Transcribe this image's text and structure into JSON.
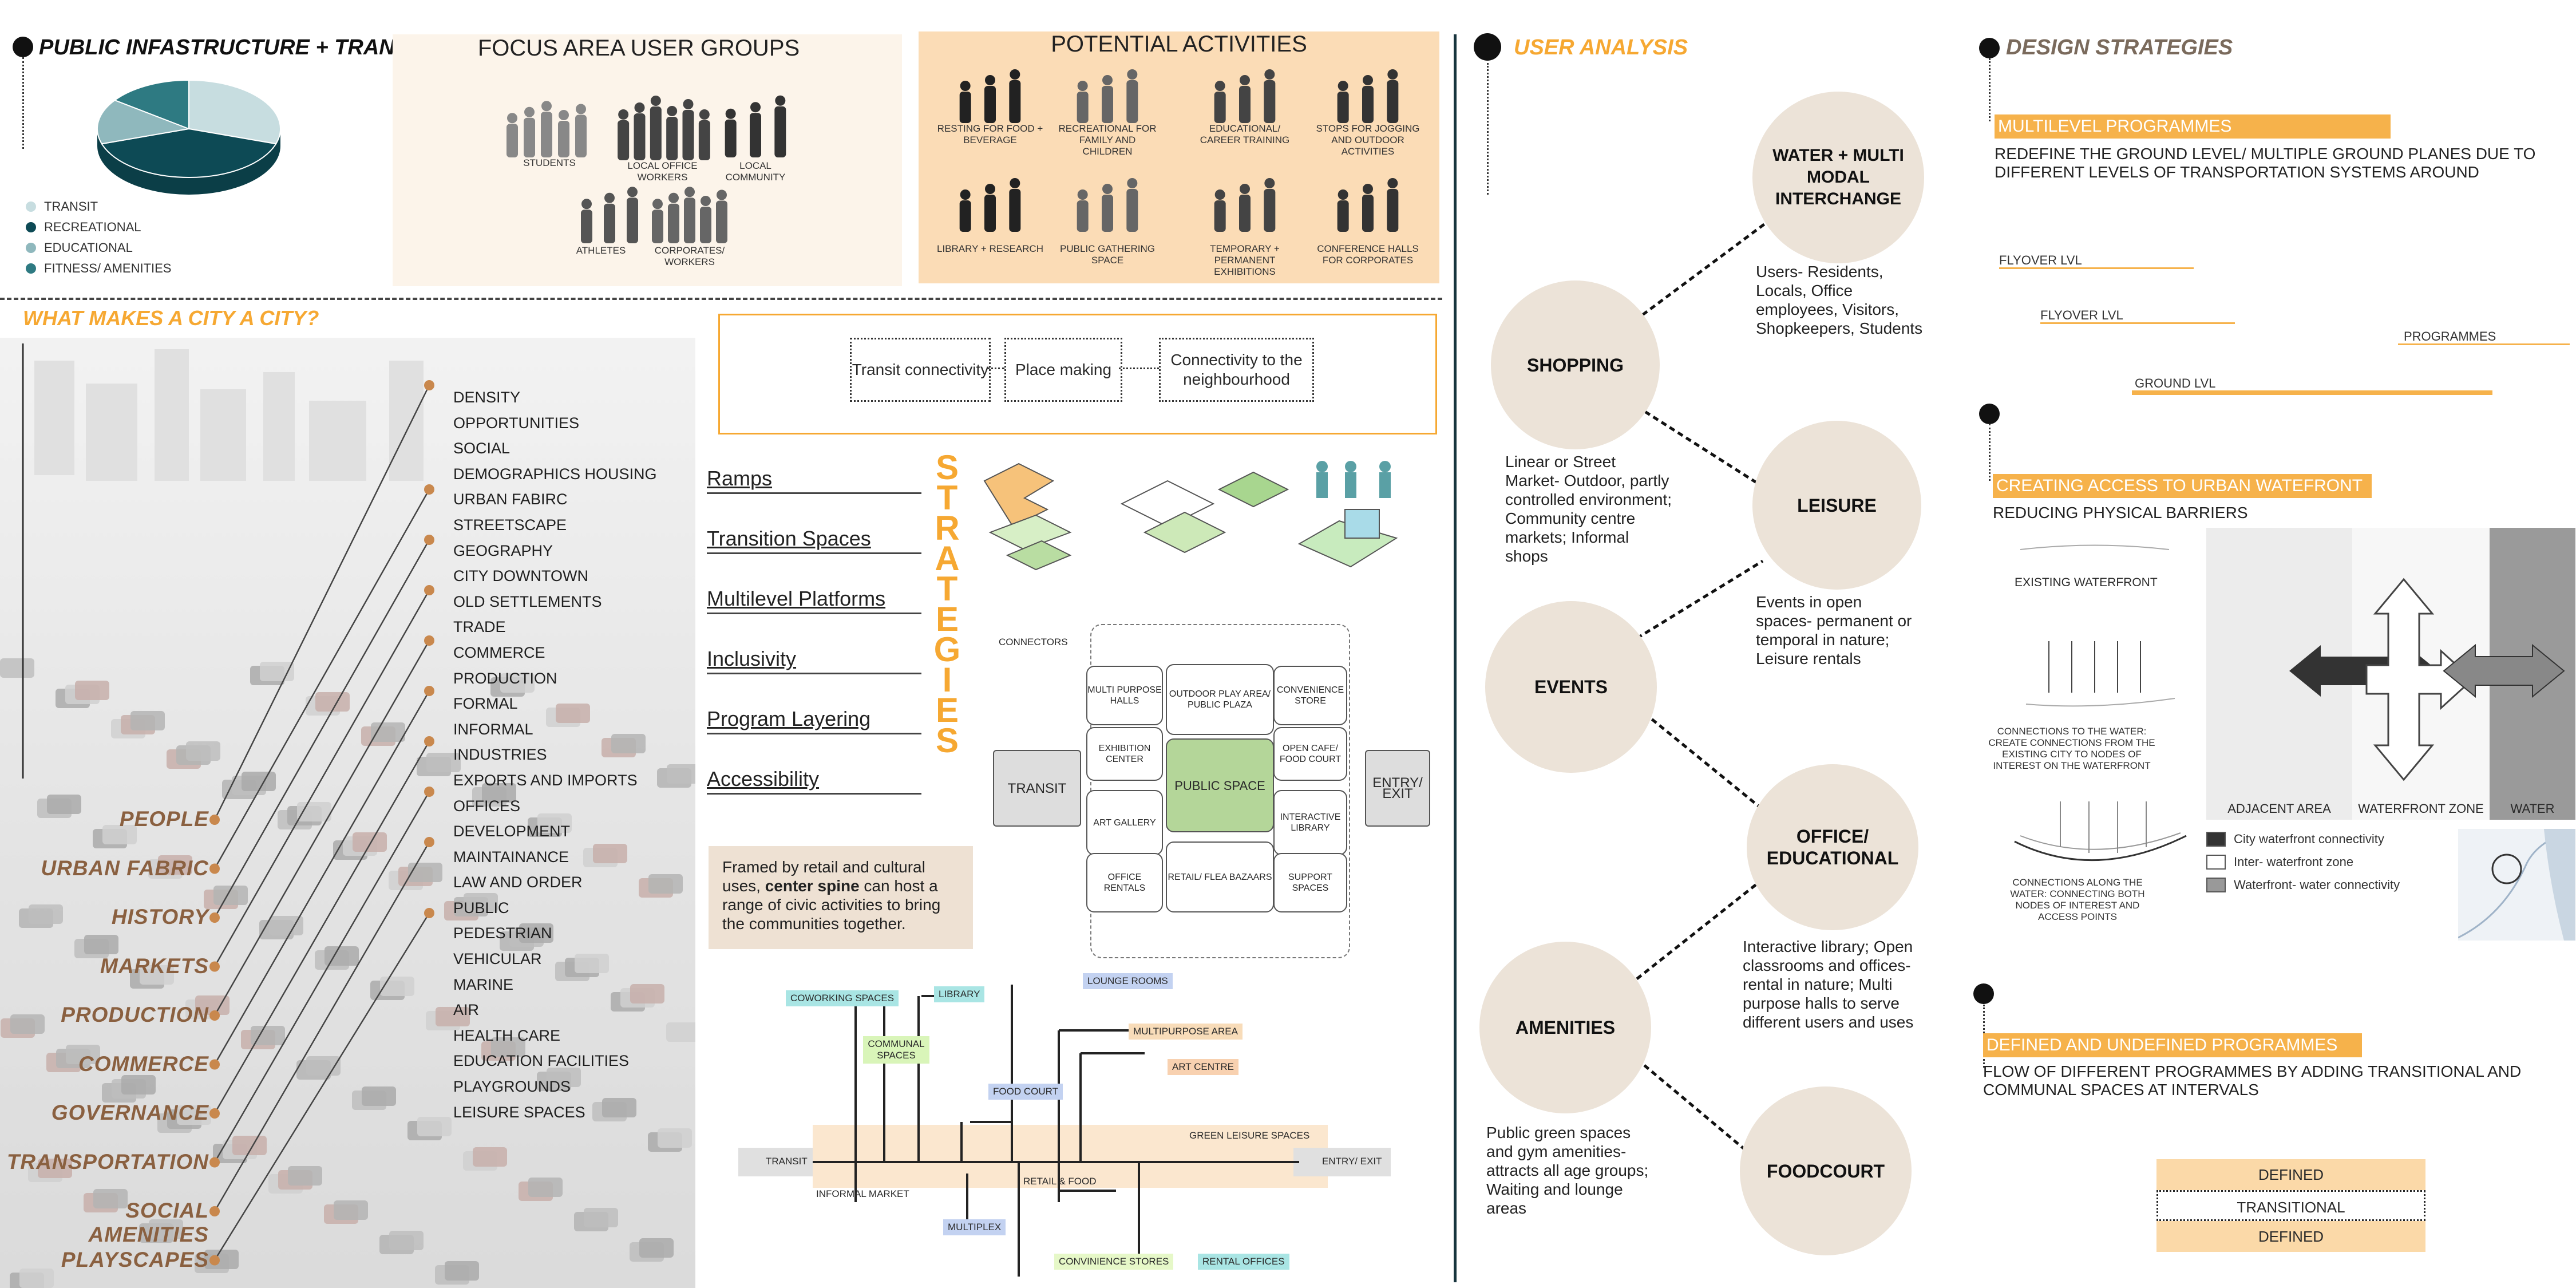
{
  "left_header": {
    "title": "PUBLIC INFASTRUCTURE + TRANSIT",
    "legend": [
      {
        "label": "TRANSIT",
        "color": "#c7dde0"
      },
      {
        "label": "RECREATIONAL",
        "color": "#0d4a55"
      },
      {
        "label": "EDUCATIONAL",
        "color": "#8fb8bd"
      },
      {
        "label": "FITNESS/ AMENITIES",
        "color": "#2e7a82"
      }
    ]
  },
  "chart_data": {
    "type": "pie",
    "title": "",
    "slices": [
      {
        "name": "TRANSIT",
        "value": 30,
        "color": "#c7dde0"
      },
      {
        "name": "RECREATIONAL",
        "value": 40,
        "color": "#0d4a55"
      },
      {
        "name": "EDUCATIONAL",
        "value": 15,
        "color": "#8fb8bd"
      },
      {
        "name": "FITNESS/ AMENITIES",
        "value": 15,
        "color": "#2e7a82"
      }
    ]
  },
  "focus": {
    "title": "FOCUS AREA USER GROUPS",
    "groups": [
      "STUDENTS",
      "LOCAL OFFICE WORKERS",
      "LOCAL COMMUNITY",
      "ATHLETES",
      "CORPORATES/ WORKERS"
    ]
  },
  "activities": {
    "title": "POTENTIAL ACTIVITIES",
    "items": [
      "RESTING FOR FOOD + BEVERAGE",
      "RECREATIONAL FOR FAMILY AND CHILDREN",
      "EDUCATIONAL/ CAREER TRAINING",
      "STOPS FOR JOGGING AND OUTDOOR ACTIVITIES",
      "LIBRARY + RESEARCH",
      "PUBLIC GATHERING SPACE",
      "TEMPORARY + PERMANENT EXHIBITIONS",
      "CONFERENCE HALLS FOR CORPORATES"
    ]
  },
  "city": {
    "title": "WHAT MAKES A CITY A CITY?",
    "list": [
      "DENSITY",
      "OPPORTUNITIES",
      "SOCIAL",
      "DEMOGRAPHICS HOUSING",
      "URBAN FABIRC",
      "STREETSCAPE",
      "GEOGRAPHY",
      "CITY DOWNTOWN",
      "OLD SETTLEMENTS",
      "TRADE",
      "COMMERCE",
      "PRODUCTION",
      "FORMAL",
      "INFORMAL",
      "INDUSTRIES",
      "EXPORTS AND IMPORTS",
      "OFFICES",
      "DEVELOPMENT",
      "MAINTAINANCE",
      "LAW AND ORDER",
      "PUBLIC",
      "PEDESTRIAN",
      "VEHICULAR",
      "MARINE",
      "AIR",
      "HEALTH CARE",
      "EDUCATION FACILITIES",
      "PLAYGROUNDS",
      "LEISURE SPACES"
    ],
    "categories": [
      "PEOPLE",
      "URBAN FABRIC",
      "HISTORY",
      "MARKETS",
      "PRODUCTION",
      "COMMERCE",
      "GOVERNANCE",
      "TRANSPORTATION",
      "SOCIAL AMENITIES",
      "PLAYSCAPES"
    ]
  },
  "strategies": {
    "goals": [
      "Transit connectivity",
      "Place making",
      "Connectivity to the neighbourhood"
    ],
    "vertical_word": "STRATEGIES",
    "items": [
      "Ramps",
      "Transition Spaces",
      "Multilevel Platforms",
      "Inclusivity",
      "Program Layering",
      "Accessibility"
    ],
    "note_plain": "Framed by retail and cultural uses, ",
    "note_bold": "center spine",
    "note_rest": " can host a range of civic activities to bring the communities together.",
    "connectors": "CONNECTORS",
    "zones": {
      "multi": "MULTI PURPOSE HALLS",
      "play": "OUTDOOR PLAY AREA/ PUBLIC PLAZA",
      "conv": "CONVENIENCE STORE",
      "exhib": "EXHIBITION CENTER",
      "public": "PUBLIC SPACE",
      "cafe": "OPEN CAFE/ FOOD COURT",
      "art": "ART GALLERY",
      "library": "INTERACTIVE LIBRARY",
      "office": "OFFICE RENTALS",
      "retail": "RETAIL/ FLEA BAZAARS",
      "support": "SUPPORT SPACES",
      "transit": "TRANSIT",
      "entry": "ENTRY/ EXIT"
    },
    "spine": {
      "coworking": "COWORKING SPACES",
      "library": "LIBRARY",
      "communal": "COMMUNAL SPACES",
      "lounge": "LOUNGE ROOMS",
      "multipurpose": "MULTIPURPOSE AREA",
      "art": "ART CENTRE",
      "food": "FOOD COURT",
      "green": "GREEN LEISURE SPACES",
      "transit": "TRANSIT",
      "entry": "ENTRY/ EXIT",
      "informal": "INFORMAL MARKET",
      "retail": "RETAIL & FOOD",
      "multiplex": "MULTIPLEX",
      "convenience": "CONVINIENCE STORES",
      "rental": "RENTAL OFFICES"
    }
  },
  "user_analysis": {
    "title": "USER ANALYSIS",
    "nodes": {
      "water": "WATER + MULTI MODAL INTERCHANGE",
      "shopping": "SHOPPING",
      "leisure": "LEISURE",
      "events": "EVENTS",
      "office": "OFFICE/ EDUCATIONAL",
      "amenities": "AMENITIES",
      "foodcourt": "FOODCOURT"
    },
    "descs": {
      "water": "Users- Residents, Locals, Office employees, Visitors, Shopkeepers, Students",
      "shopping": "Linear or Street Market- Outdoor, partly controlled environment; Community centre markets; Informal shops",
      "leisure": "Events in open spaces- permanent or temporal in nature; Leisure rentals",
      "office": "Interactive library; Open classrooms and offices- rental in nature; Multi purpose halls to serve different users and uses",
      "amenities": "Public green spaces and gym amenities- attracts all age groups; Waiting and lounge areas"
    }
  },
  "design": {
    "title": "DESIGN STRATEGIES",
    "s1_label": "MULTILEVEL PROGRAMMES",
    "s1_text": "REDEFINE THE GROUND LEVEL/ MULTIPLE GROUND PLANES DUE TO DIFFERENT LEVELS OF TRANSPORTATION SYSTEMS AROUND",
    "levels": [
      "FLYOVER LVL",
      "FLYOVER LVL",
      "PROGRAMMES",
      "GROUND LVL"
    ],
    "s2_label": "CREATING ACCESS TO URBAN WATEFRONT",
    "s2_text": "REDUCING PHYSICAL BARRIERS",
    "existing": "EXISTING WATERFRONT",
    "conn1": "CONNECTIONS TO THE WATER: CREATE CONNECTIONS FROM THE EXISTING CITY TO NODES OF INTEREST ON THE WATERFRONT",
    "conn2": "CONNECTIONS ALONG THE WATER: CONNECTING BOTH NODES OF INTEREST AND ACCESS POINTS",
    "zones": [
      "ADJACENT AREA",
      "WATERFRONT ZONE",
      "WATER"
    ],
    "wlegend": [
      "City waterfront connectivity",
      "Inter- waterfront zone",
      "Waterfront- water connectivity"
    ],
    "s3_label": "DEFINED AND UNDEFINED PROGRAMMES",
    "s3_text": "FLOW OF DIFFERENT PROGRAMMES BY ADDING TRANSITIONAL AND COMMUNAL SPACES AT INTERVALS",
    "stack": [
      "DEFINED",
      "TRANSITIONAL",
      "DEFINED"
    ]
  },
  "colors": {
    "accent": "#f6a832",
    "node": "#ece3d8",
    "dark": "#1d3e4a"
  }
}
